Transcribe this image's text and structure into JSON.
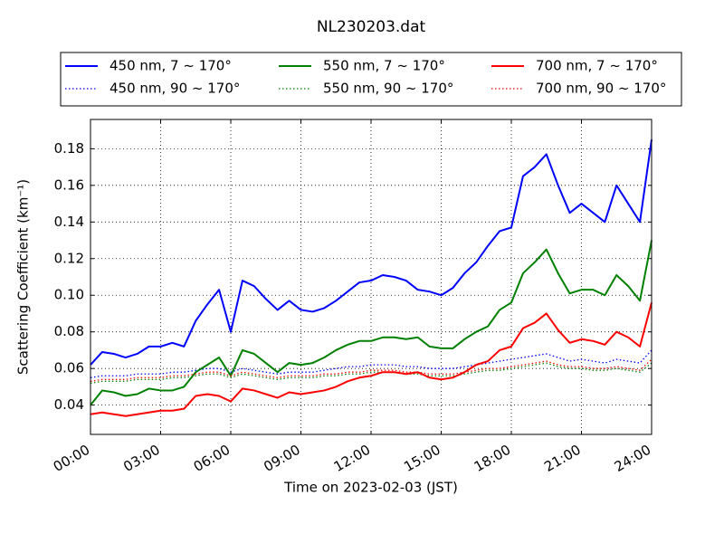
{
  "chart_data": {
    "type": "line",
    "title": "NL230203.dat",
    "xlabel": "Time on 2023-02-03 (JST)",
    "ylabel": "Scattering Coefficient (km⁻¹)",
    "x": [
      0,
      0.5,
      1,
      1.5,
      2,
      2.5,
      3,
      3.5,
      4,
      4.5,
      5,
      5.5,
      6,
      6.5,
      7,
      7.5,
      8,
      8.5,
      9,
      9.5,
      10,
      10.5,
      11,
      11.5,
      12,
      12.5,
      13,
      13.5,
      14,
      14.5,
      15,
      15.5,
      16,
      16.5,
      17,
      17.5,
      18,
      18.5,
      19,
      19.5,
      20,
      20.5,
      21,
      21.5,
      22,
      22.5,
      23,
      23.5,
      24
    ],
    "xlim": [
      0,
      24
    ],
    "xticks": [
      {
        "value": 0,
        "label": "00:00"
      },
      {
        "value": 3,
        "label": "03:00"
      },
      {
        "value": 6,
        "label": "06:00"
      },
      {
        "value": 9,
        "label": "09:00"
      },
      {
        "value": 12,
        "label": "12:00"
      },
      {
        "value": 15,
        "label": "15:00"
      },
      {
        "value": 18,
        "label": "18:00"
      },
      {
        "value": 21,
        "label": "21:00"
      },
      {
        "value": 24,
        "label": "24:00"
      }
    ],
    "ylim": [
      0.024,
      0.196
    ],
    "yticks": [
      0.04,
      0.06,
      0.08,
      {
        "value": 0.1,
        "label": "0.10"
      },
      0.12,
      0.14,
      0.16,
      0.18
    ],
    "grid": true,
    "series": [
      {
        "name": "450 nm, 7 ~ 170°",
        "color": "#0000ff",
        "linestyle": "solid",
        "values": [
          0.062,
          0.069,
          0.068,
          0.066,
          0.068,
          0.072,
          0.072,
          0.074,
          0.072,
          0.086,
          0.095,
          0.103,
          0.08,
          0.108,
          0.105,
          0.098,
          0.092,
          0.097,
          0.092,
          0.091,
          0.093,
          0.097,
          0.102,
          0.107,
          0.108,
          0.111,
          0.11,
          0.108,
          0.103,
          0.102,
          0.1,
          0.104,
          0.112,
          0.118,
          0.127,
          0.135,
          0.137,
          0.165,
          0.17,
          0.177,
          0.16,
          0.145,
          0.15,
          0.145,
          0.14,
          0.16,
          0.15,
          0.14,
          0.185
        ]
      },
      {
        "name": "450 nm, 90 ~ 170°",
        "color": "#0000ff",
        "linestyle": "dotted",
        "values": [
          0.055,
          0.056,
          0.056,
          0.056,
          0.057,
          0.057,
          0.057,
          0.058,
          0.058,
          0.059,
          0.06,
          0.06,
          0.058,
          0.06,
          0.059,
          0.058,
          0.057,
          0.058,
          0.058,
          0.058,
          0.059,
          0.06,
          0.061,
          0.061,
          0.062,
          0.062,
          0.062,
          0.061,
          0.061,
          0.06,
          0.06,
          0.06,
          0.061,
          0.062,
          0.063,
          0.064,
          0.065,
          0.066,
          0.067,
          0.068,
          0.066,
          0.064,
          0.065,
          0.064,
          0.063,
          0.065,
          0.064,
          0.063,
          0.07
        ]
      },
      {
        "name": "550 nm, 7 ~ 170°",
        "color": "#008000",
        "linestyle": "solid",
        "values": [
          0.04,
          0.048,
          0.047,
          0.045,
          0.046,
          0.049,
          0.048,
          0.048,
          0.05,
          0.058,
          0.062,
          0.066,
          0.056,
          0.07,
          0.068,
          0.063,
          0.058,
          0.063,
          0.062,
          0.063,
          0.066,
          0.07,
          0.073,
          0.075,
          0.075,
          0.077,
          0.077,
          0.076,
          0.077,
          0.072,
          0.071,
          0.071,
          0.076,
          0.08,
          0.083,
          0.092,
          0.096,
          0.112,
          0.118,
          0.125,
          0.112,
          0.101,
          0.103,
          0.103,
          0.1,
          0.111,
          0.105,
          0.097,
          0.13
        ]
      },
      {
        "name": "550 nm, 90 ~ 170°",
        "color": "#008000",
        "linestyle": "dotted",
        "values": [
          0.052,
          0.053,
          0.053,
          0.053,
          0.054,
          0.054,
          0.054,
          0.055,
          0.055,
          0.056,
          0.057,
          0.057,
          0.055,
          0.057,
          0.056,
          0.055,
          0.054,
          0.055,
          0.055,
          0.055,
          0.056,
          0.056,
          0.057,
          0.057,
          0.058,
          0.058,
          0.058,
          0.057,
          0.057,
          0.056,
          0.056,
          0.056,
          0.057,
          0.058,
          0.059,
          0.059,
          0.06,
          0.061,
          0.062,
          0.063,
          0.061,
          0.06,
          0.06,
          0.059,
          0.059,
          0.06,
          0.059,
          0.058,
          0.063
        ]
      },
      {
        "name": "700 nm, 7 ~ 170°",
        "color": "#ff0000",
        "linestyle": "solid",
        "values": [
          0.035,
          0.036,
          0.035,
          0.034,
          0.035,
          0.036,
          0.037,
          0.037,
          0.038,
          0.045,
          0.046,
          0.045,
          0.042,
          0.049,
          0.048,
          0.046,
          0.044,
          0.047,
          0.046,
          0.047,
          0.048,
          0.05,
          0.053,
          0.055,
          0.056,
          0.058,
          0.058,
          0.057,
          0.058,
          0.055,
          0.054,
          0.055,
          0.058,
          0.062,
          0.064,
          0.07,
          0.072,
          0.082,
          0.085,
          0.09,
          0.081,
          0.074,
          0.076,
          0.075,
          0.073,
          0.08,
          0.077,
          0.072,
          0.096
        ]
      },
      {
        "name": "700 nm, 90 ~ 170°",
        "color": "#ff0000",
        "linestyle": "dotted",
        "values": [
          0.053,
          0.054,
          0.054,
          0.054,
          0.055,
          0.055,
          0.055,
          0.056,
          0.056,
          0.057,
          0.058,
          0.058,
          0.056,
          0.058,
          0.057,
          0.056,
          0.055,
          0.056,
          0.056,
          0.056,
          0.057,
          0.057,
          0.058,
          0.058,
          0.059,
          0.059,
          0.059,
          0.058,
          0.058,
          0.057,
          0.057,
          0.057,
          0.058,
          0.059,
          0.06,
          0.06,
          0.061,
          0.062,
          0.063,
          0.064,
          0.062,
          0.061,
          0.061,
          0.06,
          0.06,
          0.061,
          0.06,
          0.059,
          0.065
        ]
      }
    ]
  }
}
